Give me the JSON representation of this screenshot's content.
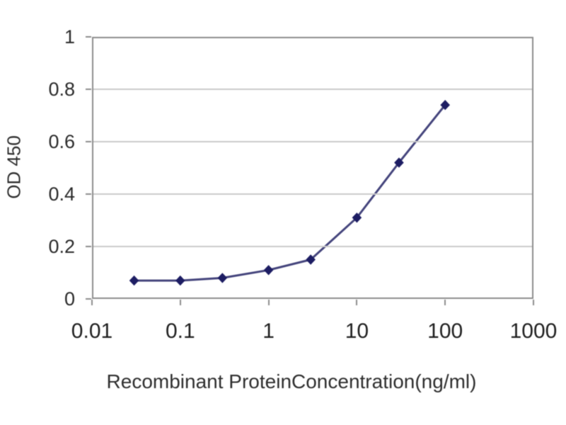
{
  "chart_data": {
    "type": "line",
    "title": "",
    "xlabel": "Recombinant ProteinConcentration(ng/ml)",
    "ylabel": "OD 450",
    "x_scale": "log",
    "y_scale": "linear",
    "xlim": [
      0.01,
      1000
    ],
    "ylim": [
      0,
      1
    ],
    "x": [
      0.03,
      0.1,
      0.3,
      1,
      3,
      10,
      30,
      100
    ],
    "y": [
      0.07,
      0.07,
      0.08,
      0.11,
      0.15,
      0.31,
      0.52,
      0.74
    ],
    "x_ticks": [
      0.01,
      0.1,
      1,
      10,
      100,
      1000
    ],
    "x_tick_labels": [
      "0.01",
      "0.1",
      "1",
      "10",
      "100",
      "1000"
    ],
    "y_ticks": [
      0,
      0.2,
      0.4,
      0.6,
      0.8,
      1
    ],
    "y_tick_labels": [
      "0",
      "0.2",
      "0.4",
      "0.6",
      "0.8",
      "1"
    ],
    "grid": "horizontal",
    "legend": "none",
    "marker_shape": "diamond",
    "colors": {
      "line": "#44447c",
      "marker": "#1d1d63",
      "grid": "#cacaca",
      "frame": "#8c8c8c",
      "text": "#2a2a2a",
      "background": "#ffffff"
    }
  }
}
